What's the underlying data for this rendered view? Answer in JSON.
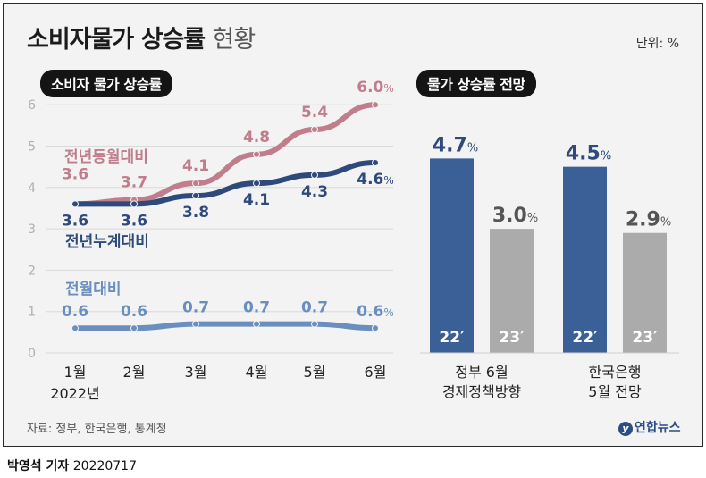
{
  "title": {
    "main": "소비자물가 상승률",
    "sub": "현황"
  },
  "unit_label": "단위: %",
  "left_section_label": "소비자 물가 상승률",
  "right_section_label": "물가 상승률 전망",
  "source": "자료: 정부, 한국은행, 통계청",
  "logo_text": "연합뉴스",
  "byline": {
    "name": "박영석 기자",
    "date": "20220717"
  },
  "chart_data": [
    {
      "type": "line",
      "categories": [
        "1월",
        "2월",
        "3월",
        "4월",
        "5월",
        "6월"
      ],
      "x_sublabel": "2022년",
      "ylim": [
        0,
        6
      ],
      "yticks": [
        "0",
        "1",
        "2",
        "3",
        "4",
        "5",
        "6"
      ],
      "grid": true,
      "series": [
        {
          "name": "전년동월대비",
          "values": [
            3.6,
            3.7,
            4.1,
            4.8,
            5.4,
            6.0
          ],
          "labels": [
            "3.6",
            "3.7",
            "4.1",
            "4.8",
            "5.4",
            "6.0"
          ],
          "color": "#c07d8c"
        },
        {
          "name": "전년누계대비",
          "values": [
            3.6,
            3.6,
            3.8,
            4.1,
            4.3,
            4.6
          ],
          "labels": [
            "3.6",
            "3.6",
            "3.8",
            "4.1",
            "4.3",
            "4.6"
          ],
          "color": "#2e4a7a"
        },
        {
          "name": "전월대비",
          "values": [
            0.6,
            0.6,
            0.7,
            0.7,
            0.7,
            0.6
          ],
          "labels": [
            "0.6",
            "0.6",
            "0.7",
            "0.7",
            "0.7",
            "0.6"
          ],
          "color": "#6a8fbf"
        }
      ],
      "last_label_suffix": "%"
    },
    {
      "type": "bar",
      "groups": [
        {
          "label_lines": [
            "정부 6월",
            "경제정책방향"
          ],
          "bars": [
            {
              "year": "22′",
              "value": 4.7,
              "label": "4.7",
              "color": "#3b5f97"
            },
            {
              "year": "23′",
              "value": 3.0,
              "label": "3.0",
              "color": "#ababab"
            }
          ]
        },
        {
          "label_lines": [
            "한국은행",
            "5월 전망"
          ],
          "bars": [
            {
              "year": "22′",
              "value": 4.5,
              "label": "4.5",
              "color": "#3b5f97"
            },
            {
              "year": "23′",
              "value": 2.9,
              "label": "2.9",
              "color": "#ababab"
            }
          ]
        }
      ],
      "value_suffix": "%"
    }
  ]
}
